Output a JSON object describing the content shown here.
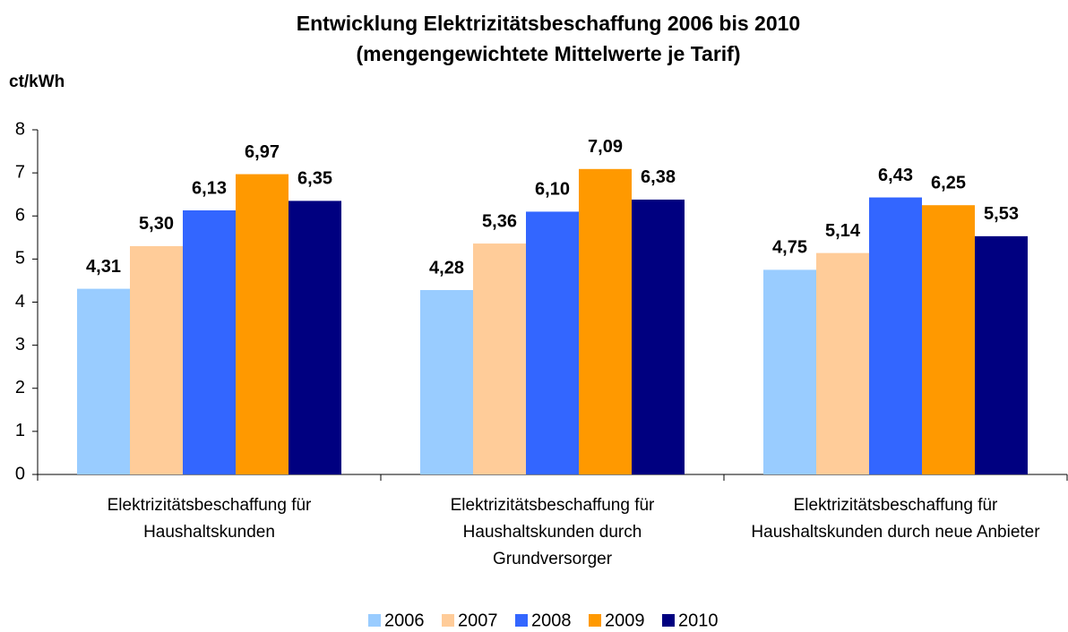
{
  "chart_data": {
    "type": "bar",
    "title": "Entwicklung Elektrizitätsbeschaffung 2006 bis 2010",
    "subtitle": "(mengengewichtete Mittelwerte je Tarif)",
    "y_label": "ct/kWh",
    "categories": [
      "Elektrizitätsbeschaffung für Haushaltskunden",
      "Elektrizitätsbeschaffung für Haushaltskunden durch Grundversorger",
      "Elektrizitätsbeschaffung für Haushaltskunden durch neue Anbieter"
    ],
    "series": [
      {
        "name": "2006",
        "color": "#99ccff",
        "values": [
          4.31,
          4.28,
          4.75
        ],
        "value_labels": [
          "4,31",
          "4,28",
          "4,75"
        ]
      },
      {
        "name": "2007",
        "color": "#ffcc99",
        "values": [
          5.3,
          5.36,
          5.14
        ],
        "value_labels": [
          "5,30",
          "5,36",
          "5,14"
        ]
      },
      {
        "name": "2008",
        "color": "#3366ff",
        "values": [
          6.13,
          6.1,
          6.43
        ],
        "value_labels": [
          "6,13",
          "6,10",
          "6,43"
        ]
      },
      {
        "name": "2009",
        "color": "#ff9900",
        "values": [
          6.97,
          7.09,
          6.25
        ],
        "value_labels": [
          "6,97",
          "7,09",
          "6,25"
        ]
      },
      {
        "name": "2010",
        "color": "#000080",
        "values": [
          6.35,
          6.38,
          5.53
        ],
        "value_labels": [
          "6,35",
          "6,38",
          "5,53"
        ]
      }
    ],
    "ylim": [
      0,
      8
    ],
    "yticks": [
      0,
      1,
      2,
      3,
      4,
      5,
      6,
      7,
      8
    ],
    "legend": "bottom"
  }
}
